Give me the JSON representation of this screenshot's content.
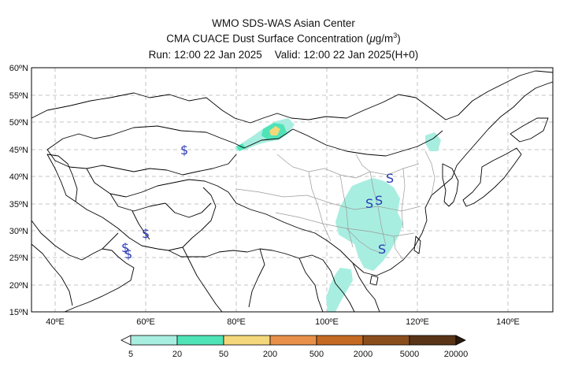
{
  "header": {
    "title": "WMO SDS-WAS Asian Center",
    "subtitle_prefix": "CMA CUACE Dust Surface Concentration (",
    "subtitle_unit_mu": "μ",
    "subtitle_unit_g": "g/m",
    "subtitle_unit_exp": "3",
    "subtitle_suffix": ")",
    "run": "Run: 12:00 22 Jan 2025",
    "valid": "Valid: 12:00 22 Jan 2025(H+0)"
  },
  "axes": {
    "lat_labels": [
      "60ºN",
      "55ºN",
      "50ºN",
      "45ºN",
      "40ºN",
      "35ºN",
      "30ºN",
      "25ºN",
      "20ºN",
      "15ºN"
    ],
    "lon_labels": [
      "40ºE",
      "60ºE",
      "80ºE",
      "100ºE",
      "120ºE",
      "140ºE"
    ]
  },
  "colorbar": {
    "labels": [
      "5",
      "20",
      "50",
      "200",
      "500",
      "2000",
      "5000",
      "20000"
    ],
    "colors": [
      "#a8eee0",
      "#4fe3b8",
      "#f3d77a",
      "#e8904a",
      "#c56a22",
      "#8a4e1d",
      "#5a3416",
      "#2a1a0c"
    ]
  },
  "markers": {
    "symbol": "$",
    "symbol_alt": "S"
  },
  "colors": {
    "border": "#000000",
    "province": "#9a9a9a",
    "grid": "#b4b4b4",
    "marker": "#2a3bb5"
  }
}
